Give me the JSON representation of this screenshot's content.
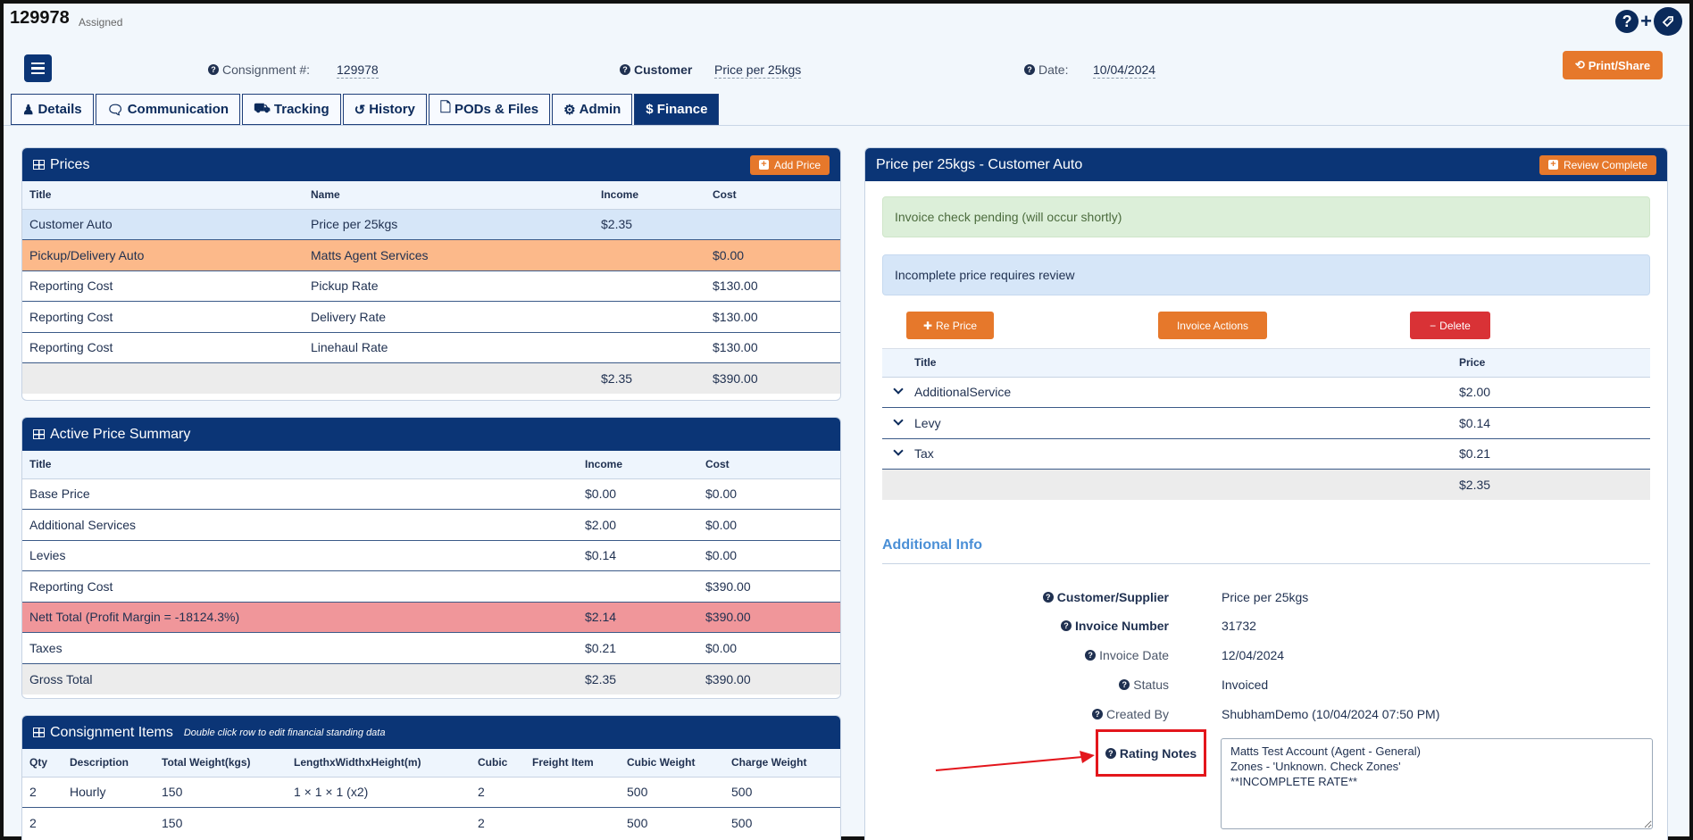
{
  "header": {
    "consignment_id": "129978",
    "status": "Assigned",
    "help_icon": "question-icon",
    "add_icon": "plus-icon",
    "tag_icon": "tag-icon",
    "consignment_label": "Consignment #:",
    "consignment_value": "129978",
    "customer_label": "Customer",
    "customer_value": "Price per 25kgs",
    "date_label": "Date:",
    "date_value": "10/04/2024",
    "print_label": "Print/Share"
  },
  "tabs": [
    {
      "label": "Details",
      "icon": "user-icon"
    },
    {
      "label": "Communication",
      "icon": "comment-icon"
    },
    {
      "label": "Tracking",
      "icon": "truck-icon"
    },
    {
      "label": "History",
      "icon": "history-icon"
    },
    {
      "label": "PODs & Files",
      "icon": "file-icon"
    },
    {
      "label": "Admin",
      "icon": "gear-icon"
    },
    {
      "label": "$ Finance",
      "icon": "dollar-icon"
    }
  ],
  "prices": {
    "title": "Prices",
    "add_label": "Add Price",
    "columns": [
      "Title",
      "Name",
      "Income",
      "Cost"
    ],
    "rows": [
      [
        "Customer Auto",
        "Price per 25kgs",
        "$2.35",
        ""
      ],
      [
        "Pickup/Delivery Auto",
        "Matts Agent Services",
        "",
        "$0.00"
      ],
      [
        "Reporting Cost",
        "Pickup Rate",
        "",
        "$130.00"
      ],
      [
        "Reporting Cost",
        "Delivery Rate",
        "",
        "$130.00"
      ],
      [
        "Reporting Cost",
        "Linehaul Rate",
        "",
        "$130.00"
      ],
      [
        "",
        "",
        "$2.35",
        "$390.00"
      ]
    ]
  },
  "summary": {
    "title": "Active Price Summary",
    "columns": [
      "Title",
      "Income",
      "Cost"
    ],
    "rows": [
      [
        "Base Price",
        "$0.00",
        "$0.00"
      ],
      [
        "Additional Services",
        "$2.00",
        "$0.00"
      ],
      [
        "Levies",
        "$0.14",
        "$0.00"
      ],
      [
        "Reporting Cost",
        "",
        "$390.00"
      ],
      [
        "Nett Total (Profit Margin = -18124.3%)",
        "$2.14",
        "$390.00"
      ],
      [
        "Taxes",
        "$0.21",
        "$0.00"
      ],
      [
        "Gross Total",
        "$2.35",
        "$390.00"
      ]
    ]
  },
  "items": {
    "title": "Consignment Items",
    "subtitle": "Double click row to edit financial standing data",
    "columns": [
      "Qty",
      "Description",
      "Total Weight(kgs)",
      "LengthxWidthxHeight(m)",
      "Cubic",
      "Freight Item",
      "Cubic Weight",
      "Charge Weight"
    ],
    "rows": [
      [
        "2",
        "Hourly",
        "150",
        "1 × 1 × 1 (x2)",
        "2",
        "",
        "500",
        "500"
      ],
      [
        "2",
        "",
        "150",
        "",
        "2",
        "",
        "500",
        "500"
      ]
    ]
  },
  "detail": {
    "title": "Price per 25kgs - Customer Auto",
    "review_label": "Review Complete",
    "alert_green": "Invoice check pending (will occur shortly)",
    "alert_info": "Incomplete price requires review",
    "reprice_label": "Re Price",
    "invoice_actions_label": "Invoice Actions",
    "delete_label": "Delete",
    "columns": [
      "Title",
      "Price"
    ],
    "rows": [
      [
        "AdditionalService",
        "$2.00"
      ],
      [
        "Levy",
        "$0.14"
      ],
      [
        "Tax",
        "$0.21"
      ]
    ],
    "total": "$2.35",
    "additional_info_title": "Additional Info",
    "info": [
      {
        "label": "Customer/Supplier",
        "value": "Price per 25kgs",
        "bold": true
      },
      {
        "label": "Invoice Number",
        "value": "31732",
        "bold": true
      },
      {
        "label": "Invoice Date",
        "value": "12/04/2024",
        "bold": false
      },
      {
        "label": "Status",
        "value": "Invoiced",
        "bold": false
      },
      {
        "label": "Created By",
        "value": "ShubhamDemo (10/04/2024 07:50 PM)",
        "bold": false
      }
    ],
    "rating_label": "Rating Notes",
    "rating_notes": "Matts Test Account (Agent - General)\nZones - 'Unknown. Check Zones'\n**INCOMPLETE RATE**"
  },
  "colors": {
    "navy": "#0b3576",
    "orange": "#e6782b",
    "red_button": "#d93236",
    "highlight_box": "#e3161c"
  }
}
